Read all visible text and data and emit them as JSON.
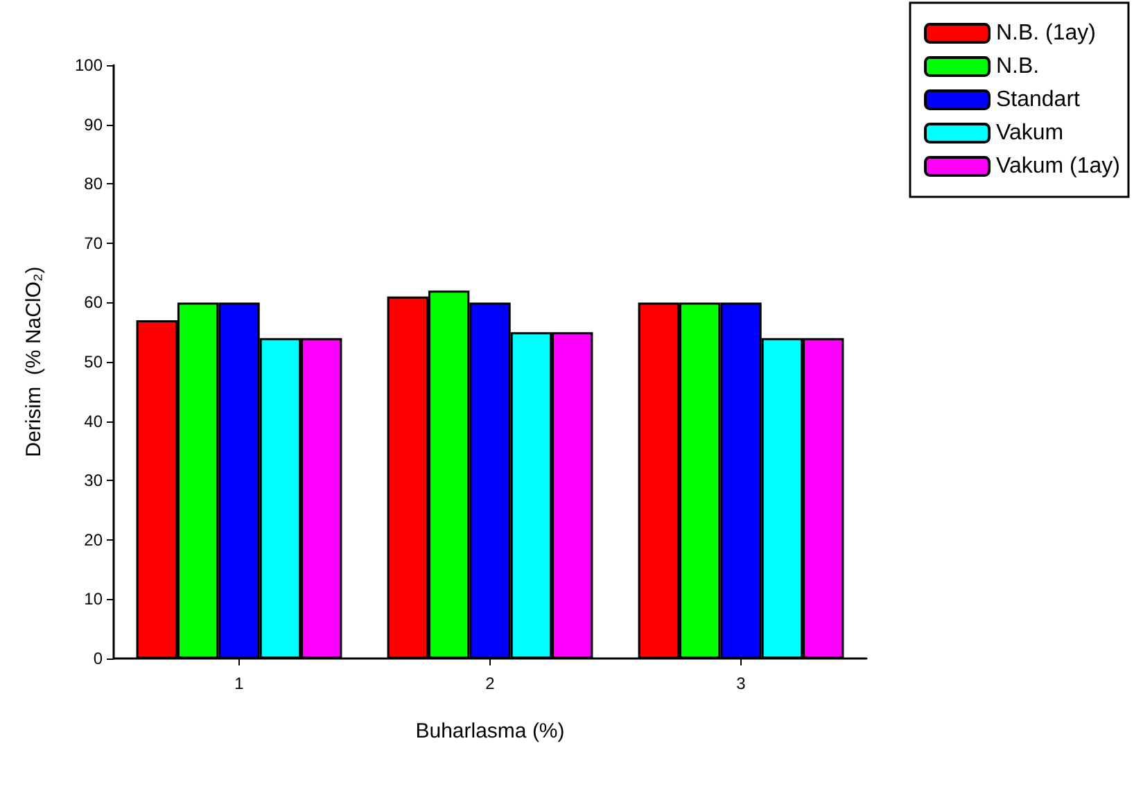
{
  "chart_data": {
    "type": "bar",
    "xlabel": "Buharlasma (%)",
    "ylabel": "Derisim  (% NaClO₂)",
    "categories": [
      "1",
      "2",
      "3"
    ],
    "series": [
      {
        "name": "N.B. (1ay)",
        "color": "#ff0000",
        "values": [
          57,
          61,
          60
        ]
      },
      {
        "name": "N.B.",
        "color": "#00ff00",
        "values": [
          60,
          62,
          60
        ]
      },
      {
        "name": "Standart",
        "color": "#0000ff",
        "values": [
          60,
          60,
          60
        ]
      },
      {
        "name": "Vakum",
        "color": "#00ffff",
        "values": [
          54,
          55,
          54
        ]
      },
      {
        "name": "Vakum (1ay)",
        "color": "#ff00ff",
        "values": [
          54,
          55,
          54
        ]
      }
    ],
    "ylim": [
      0,
      100
    ],
    "yticks": [
      0,
      10,
      20,
      30,
      40,
      50,
      60,
      70,
      80,
      90,
      100
    ],
    "grid": false,
    "legend": "top right"
  }
}
